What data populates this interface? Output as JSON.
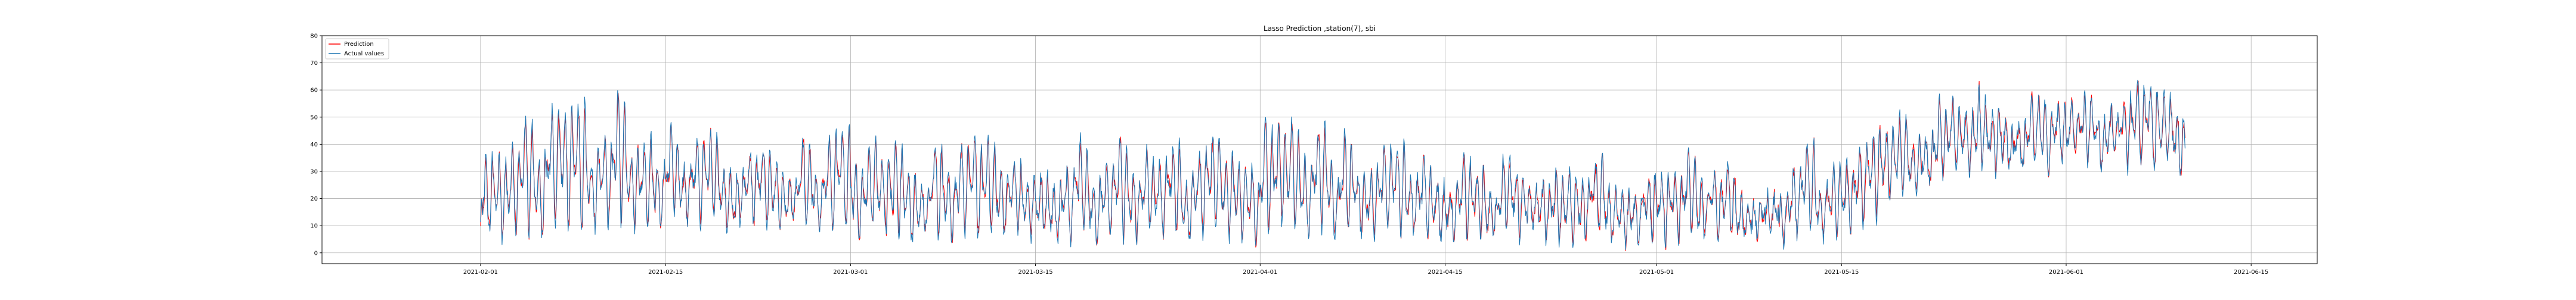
{
  "chart_data": {
    "type": "line",
    "title": "Lasso Prediction ,station(7), sbi",
    "xlabel": "",
    "ylabel": "",
    "x_range": [
      "2021-01-20",
      "2021-06-20"
    ],
    "ylim": [
      -4,
      80
    ],
    "grid": true,
    "legend": "top-left",
    "x_ticks": [
      "2021-02-01",
      "2021-02-15",
      "2021-03-01",
      "2021-03-15",
      "2021-04-01",
      "2021-04-15",
      "2021-05-01",
      "2021-05-15",
      "2021-06-01",
      "2021-06-15"
    ],
    "y_ticks": [
      0,
      10,
      20,
      30,
      40,
      50,
      60,
      70,
      80
    ],
    "series": [
      {
        "name": "Prediction",
        "color": "#ff0000"
      },
      {
        "name": "Actual values",
        "color": "#1f77b4"
      }
    ],
    "x_start": "2021-02-01",
    "x_end": "2021-06-10",
    "resolution": "hourly",
    "level_profile": {
      "dates": [
        "2021-02-01",
        "2021-02-08",
        "2021-02-15",
        "2021-02-22",
        "2021-03-01",
        "2021-03-08",
        "2021-03-15",
        "2021-03-22",
        "2021-04-01",
        "2021-04-08",
        "2021-04-15",
        "2021-04-22",
        "2021-05-01",
        "2021-05-08",
        "2021-05-15",
        "2021-05-22",
        "2021-06-01",
        "2021-06-10"
      ],
      "base": [
        4,
        5,
        10,
        8,
        4,
        3,
        3,
        3,
        4,
        5,
        4,
        3,
        3,
        3,
        5,
        25,
        32,
        30
      ],
      "peak": [
        48,
        62,
        50,
        40,
        42,
        45,
        40,
        40,
        50,
        42,
        38,
        33,
        38,
        33,
        40,
        55,
        62,
        60
      ]
    }
  }
}
